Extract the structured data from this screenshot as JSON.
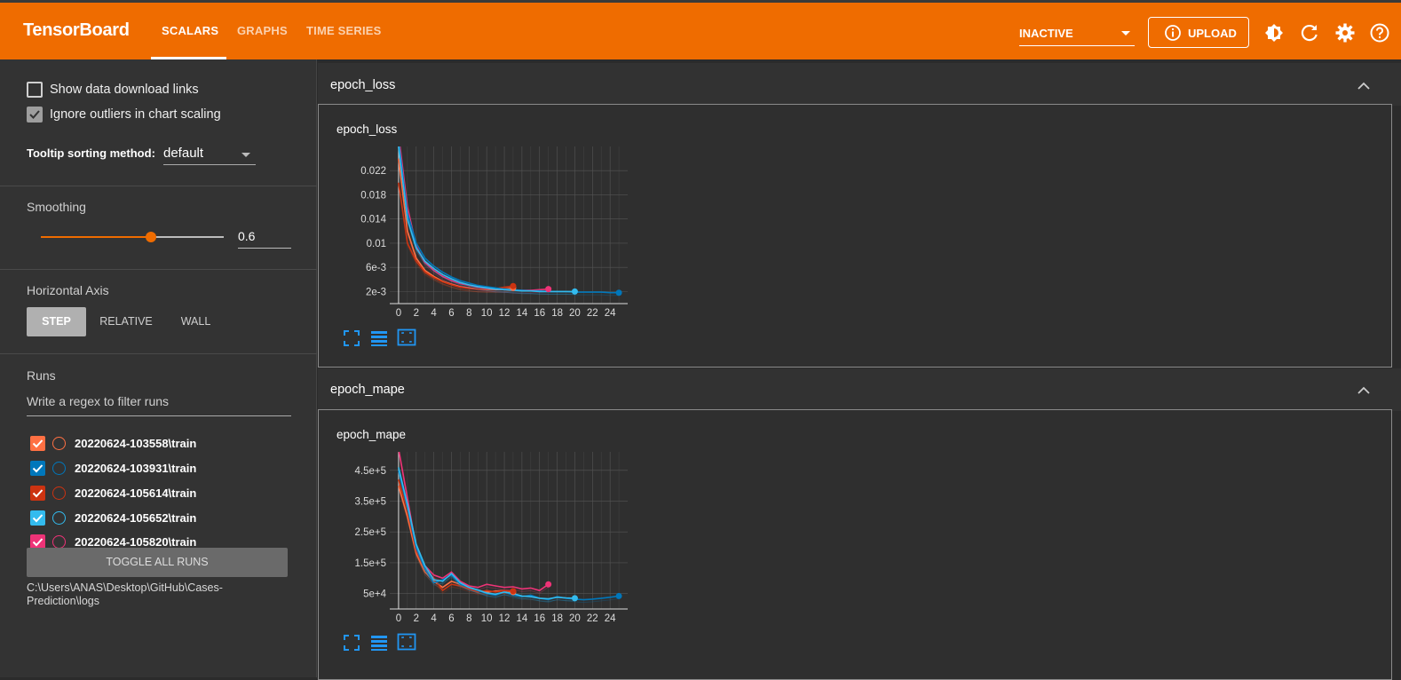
{
  "app": {
    "title": "TensorBoard"
  },
  "nav": {
    "tabs": [
      "SCALARS",
      "GRAPHS",
      "TIME SERIES"
    ],
    "active": "SCALARS"
  },
  "header": {
    "status_select": "INACTIVE",
    "upload_label": "UPLOAD",
    "icons": [
      "info-icon",
      "brightness-icon",
      "refresh-icon",
      "settings-icon",
      "help-icon"
    ]
  },
  "sidebar": {
    "show_download_links": {
      "label": "Show data download links",
      "checked": false
    },
    "ignore_outliers": {
      "label": "Ignore outliers in chart scaling",
      "checked": true
    },
    "tooltip_sorting": {
      "label": "Tooltip sorting method:",
      "value": "default"
    },
    "smoothing": {
      "label": "Smoothing",
      "value": "0.6",
      "fraction": 0.6
    },
    "horizontal_axis": {
      "label": "Horizontal Axis",
      "options": [
        "STEP",
        "RELATIVE",
        "WALL"
      ],
      "selected": "STEP"
    },
    "runs": {
      "label": "Runs",
      "filter_placeholder": "Write a regex to filter runs",
      "items": [
        {
          "name": "20220624-103558\\train",
          "color": "#ff7043",
          "checked": true
        },
        {
          "name": "20220624-103931\\train",
          "color": "#0077bb",
          "checked": true
        },
        {
          "name": "20220624-105614\\train",
          "color": "#cc3311",
          "checked": true
        },
        {
          "name": "20220624-105652\\train",
          "color": "#33bbee",
          "checked": true
        },
        {
          "name": "20220624-105820\\train",
          "color": "#ee3377",
          "checked": true
        }
      ],
      "toggle_all_label": "TOGGLE ALL RUNS",
      "log_dir": "C:\\Users\\ANAS\\Desktop\\GitHub\\Cases-Prediction\\logs"
    }
  },
  "groups": [
    {
      "name": "epoch_loss",
      "card_title": "epoch_loss"
    },
    {
      "name": "epoch_mape",
      "card_title": "epoch_mape"
    }
  ],
  "chart_data": [
    {
      "type": "line",
      "title": "epoch_loss",
      "xlabel": "",
      "ylabel": "",
      "xlim": [
        -1,
        26
      ],
      "ylim": [
        0,
        0.026
      ],
      "x_ticks": [
        0,
        2,
        4,
        6,
        8,
        10,
        12,
        14,
        16,
        18,
        20,
        22,
        24
      ],
      "y_ticks": [
        0.002,
        0.006,
        0.01,
        0.014,
        0.018,
        0.022
      ],
      "y_tick_labels": [
        "2e-3",
        "6e-3",
        "0.01",
        "0.014",
        "0.018",
        "0.022"
      ],
      "grid": true,
      "series": [
        {
          "color": "#ff7043",
          "x": [
            0,
            1,
            2,
            3,
            4,
            5,
            6,
            7,
            8,
            9,
            10,
            11,
            12,
            13
          ],
          "y": [
            0.024,
            0.012,
            0.0075,
            0.0055,
            0.0045,
            0.0037,
            0.0032,
            0.0028,
            0.0026,
            0.0024,
            0.0023,
            0.0023,
            0.0024,
            0.0026
          ]
        },
        {
          "color": "#cc3311",
          "x": [
            0,
            1,
            2,
            3,
            4,
            5,
            6,
            7,
            8,
            9,
            10,
            11,
            12,
            13
          ],
          "y": [
            0.02,
            0.01,
            0.007,
            0.0052,
            0.0043,
            0.0036,
            0.0031,
            0.0027,
            0.0025,
            0.0024,
            0.0024,
            0.0025,
            0.0027,
            0.0029
          ]
        },
        {
          "color": "#ee3377",
          "x": [
            0,
            1,
            2,
            3,
            4,
            5,
            6,
            7,
            8,
            9,
            10,
            11,
            12,
            13,
            14,
            15,
            16,
            17
          ],
          "y": [
            0.028,
            0.016,
            0.0095,
            0.0068,
            0.0055,
            0.0045,
            0.0038,
            0.0033,
            0.003,
            0.0027,
            0.0025,
            0.0024,
            0.0023,
            0.0022,
            0.0022,
            0.0022,
            0.0023,
            0.0024
          ]
        },
        {
          "color": "#0077bb",
          "x": [
            0,
            1,
            2,
            3,
            4,
            5,
            6,
            7,
            8,
            9,
            10,
            11,
            12,
            13,
            14,
            15,
            16,
            17,
            18,
            19,
            20,
            21,
            22,
            23,
            24,
            25
          ],
          "y": [
            0.027,
            0.015,
            0.01,
            0.0075,
            0.0062,
            0.0052,
            0.0044,
            0.0038,
            0.0034,
            0.003,
            0.0028,
            0.0026,
            0.0024,
            0.0023,
            0.0022,
            0.0021,
            0.0021,
            0.002,
            0.002,
            0.002,
            0.0019,
            0.0019,
            0.0019,
            0.0019,
            0.0018,
            0.0018
          ]
        },
        {
          "color": "#33bbee",
          "x": [
            0,
            1,
            2,
            3,
            4,
            5,
            6,
            7,
            8,
            9,
            10,
            11,
            12,
            13,
            14,
            15,
            16,
            17,
            18,
            19,
            20
          ],
          "y": [
            0.026,
            0.014,
            0.0092,
            0.007,
            0.0058,
            0.0048,
            0.0041,
            0.0035,
            0.0031,
            0.0028,
            0.0026,
            0.0024,
            0.0023,
            0.0022,
            0.0021,
            0.0021,
            0.002,
            0.002,
            0.002,
            0.002,
            0.002
          ]
        }
      ]
    },
    {
      "type": "line",
      "title": "epoch_mape",
      "xlabel": "",
      "ylabel": "",
      "xlim": [
        -1,
        26
      ],
      "ylim": [
        0,
        510000
      ],
      "x_ticks": [
        0,
        2,
        4,
        6,
        8,
        10,
        12,
        14,
        16,
        18,
        20,
        22,
        24
      ],
      "y_ticks": [
        50000,
        150000,
        250000,
        350000,
        450000
      ],
      "y_tick_labels": [
        "5e+4",
        "1.5e+5",
        "2.5e+5",
        "3.5e+5",
        "4.5e+5"
      ],
      "grid": true,
      "series": [
        {
          "color": "#ff7043",
          "x": [
            0,
            1,
            2,
            3,
            4,
            5,
            6,
            7,
            8,
            9,
            10,
            11,
            12,
            13
          ],
          "y": [
            400000,
            300000,
            180000,
            120000,
            90000,
            70000,
            90000,
            80000,
            70000,
            60000,
            55000,
            58000,
            60000,
            55000
          ]
        },
        {
          "color": "#cc3311",
          "x": [
            0,
            1,
            2,
            3,
            4,
            5,
            6,
            7,
            8,
            9,
            10,
            11,
            12,
            13
          ],
          "y": [
            420000,
            320000,
            190000,
            130000,
            100000,
            60000,
            80000,
            75000,
            65000,
            55000,
            60000,
            55000,
            60000,
            58000
          ]
        },
        {
          "color": "#ee3377",
          "x": [
            0,
            1,
            2,
            3,
            4,
            5,
            6,
            7,
            8,
            9,
            10,
            11,
            12,
            13,
            14,
            15,
            16,
            17
          ],
          "y": [
            520000,
            360000,
            200000,
            140000,
            110000,
            100000,
            120000,
            90000,
            75000,
            70000,
            80000,
            75000,
            70000,
            72000,
            65000,
            68000,
            60000,
            80000
          ]
        },
        {
          "color": "#0077bb",
          "x": [
            0,
            1,
            2,
            3,
            4,
            5,
            6,
            7,
            8,
            9,
            10,
            11,
            12,
            13,
            14,
            15,
            16,
            17,
            18,
            19,
            20,
            21,
            22,
            23,
            24,
            25
          ],
          "y": [
            450000,
            330000,
            200000,
            130000,
            85000,
            95000,
            110000,
            80000,
            70000,
            60000,
            50000,
            45000,
            55000,
            45000,
            40000,
            45000,
            35000,
            30000,
            40000,
            35000,
            32000,
            30000,
            32000,
            35000,
            38000,
            42000
          ]
        },
        {
          "color": "#33bbee",
          "x": [
            0,
            1,
            2,
            3,
            4,
            5,
            6,
            7,
            8,
            9,
            10,
            11,
            12,
            13,
            14,
            15,
            16,
            17,
            18,
            19,
            20
          ],
          "y": [
            460000,
            340000,
            210000,
            140000,
            95000,
            90000,
            115000,
            85000,
            70000,
            62000,
            52000,
            48000,
            55000,
            50000,
            42000,
            40000,
            35000,
            33000,
            38000,
            36000,
            35000
          ]
        }
      ]
    }
  ]
}
